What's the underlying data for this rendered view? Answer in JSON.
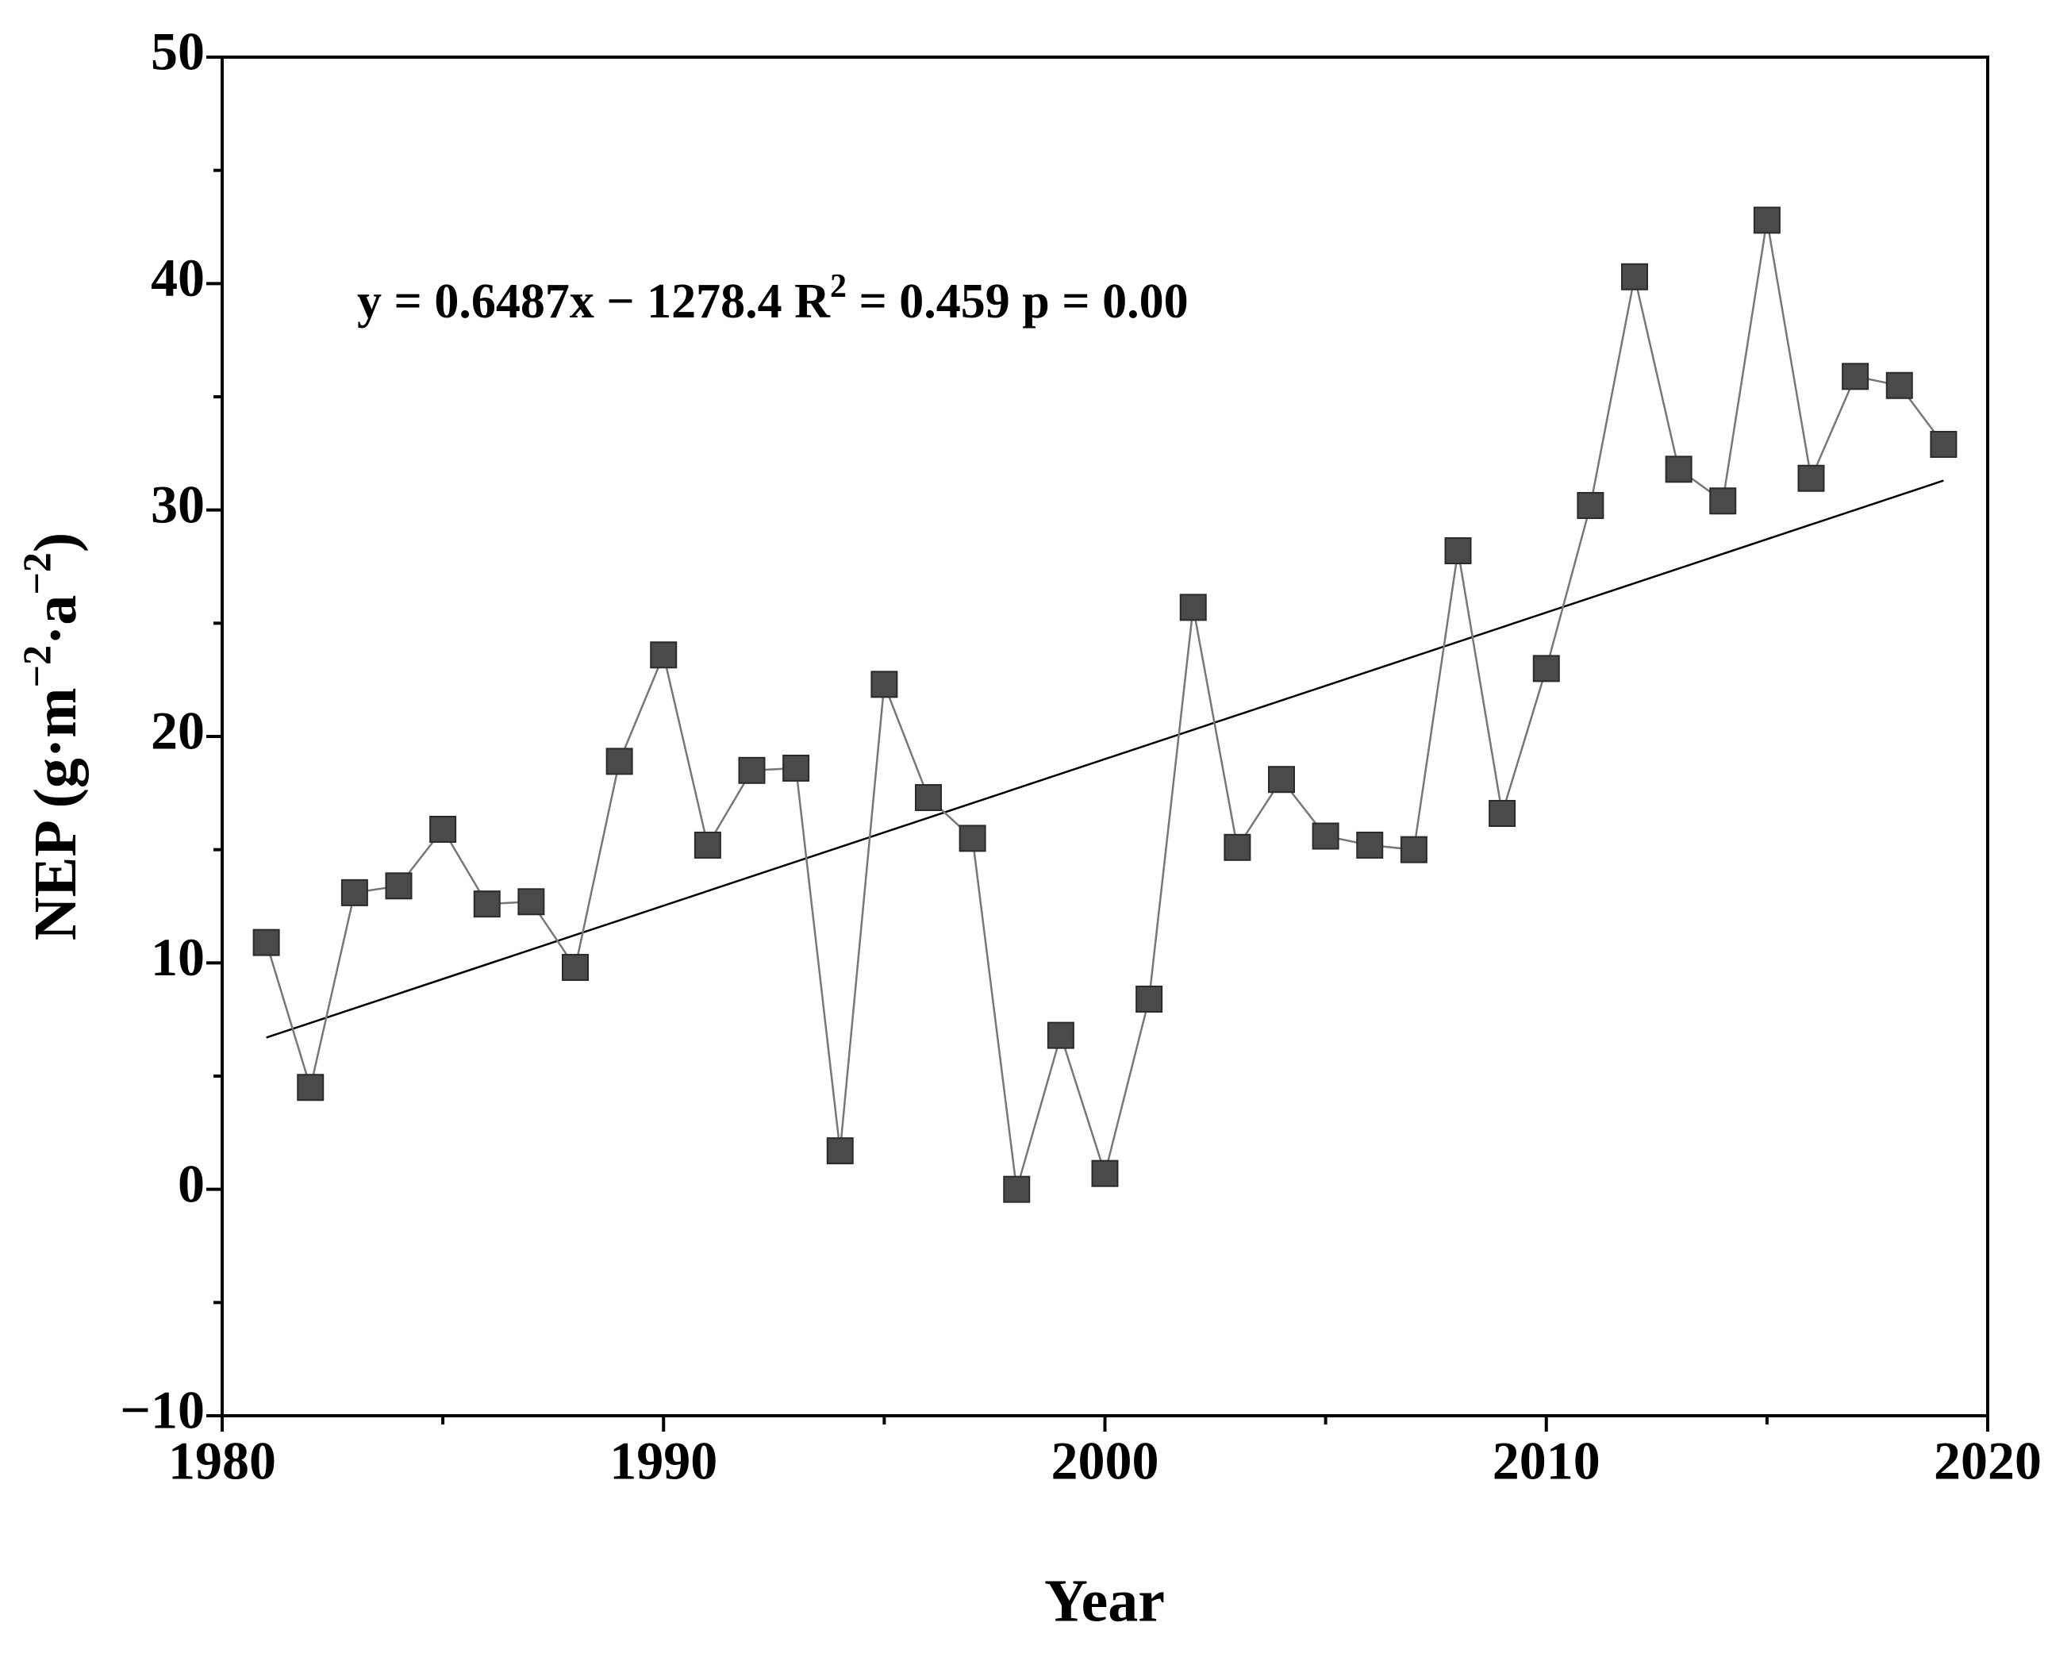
{
  "chart_data": {
    "type": "line",
    "annotation": [
      "y = 0.6487x − 1278.4 R",
      "2",
      " = 0.459 p = 0.00"
    ],
    "xlabel": "Year",
    "ylabel": [
      "NEP (g·m",
      "−2",
      "·a",
      "−2",
      ")"
    ],
    "x": [
      1981,
      1982,
      1983,
      1984,
      1985,
      1986,
      1987,
      1988,
      1989,
      1990,
      1991,
      1992,
      1993,
      1994,
      1995,
      1996,
      1997,
      1998,
      1999,
      2000,
      2001,
      2002,
      2003,
      2004,
      2005,
      2006,
      2007,
      2008,
      2009,
      2010,
      2011,
      2012,
      2013,
      2014,
      2015,
      2016,
      2017,
      2018,
      2019
    ],
    "series": [
      {
        "color": "#4a4a4a",
        "line_color": "#777777",
        "values": [
          10.9,
          4.5,
          13.1,
          13.4,
          15.9,
          12.6,
          12.7,
          9.8,
          18.9,
          23.6,
          15.2,
          18.5,
          18.6,
          1.7,
          22.3,
          17.3,
          15.5,
          0.0,
          6.8,
          0.7,
          8.4,
          25.7,
          15.1,
          18.1,
          15.6,
          15.2,
          15.0,
          28.2,
          16.6,
          23.0,
          30.2,
          40.3,
          31.8,
          30.4,
          42.8,
          31.4,
          35.9,
          35.5,
          32.9
        ]
      }
    ],
    "trend_line": {
      "x": [
        1981,
        2019
      ],
      "values": [
        6.7,
        31.3
      ],
      "color": "#000000"
    },
    "xlim": [
      1980,
      2020
    ],
    "xticks": [
      1980,
      1990,
      2000,
      2010,
      2020
    ],
    "xminorticks": [
      1985,
      1995,
      2005,
      2015
    ],
    "ylim": [
      -10,
      50
    ],
    "yticks": [
      {
        "value": -10,
        "label": "−10"
      },
      0,
      10,
      20,
      30,
      40,
      50
    ],
    "yminorticks": [
      -5,
      5,
      15,
      25,
      35,
      45
    ]
  }
}
